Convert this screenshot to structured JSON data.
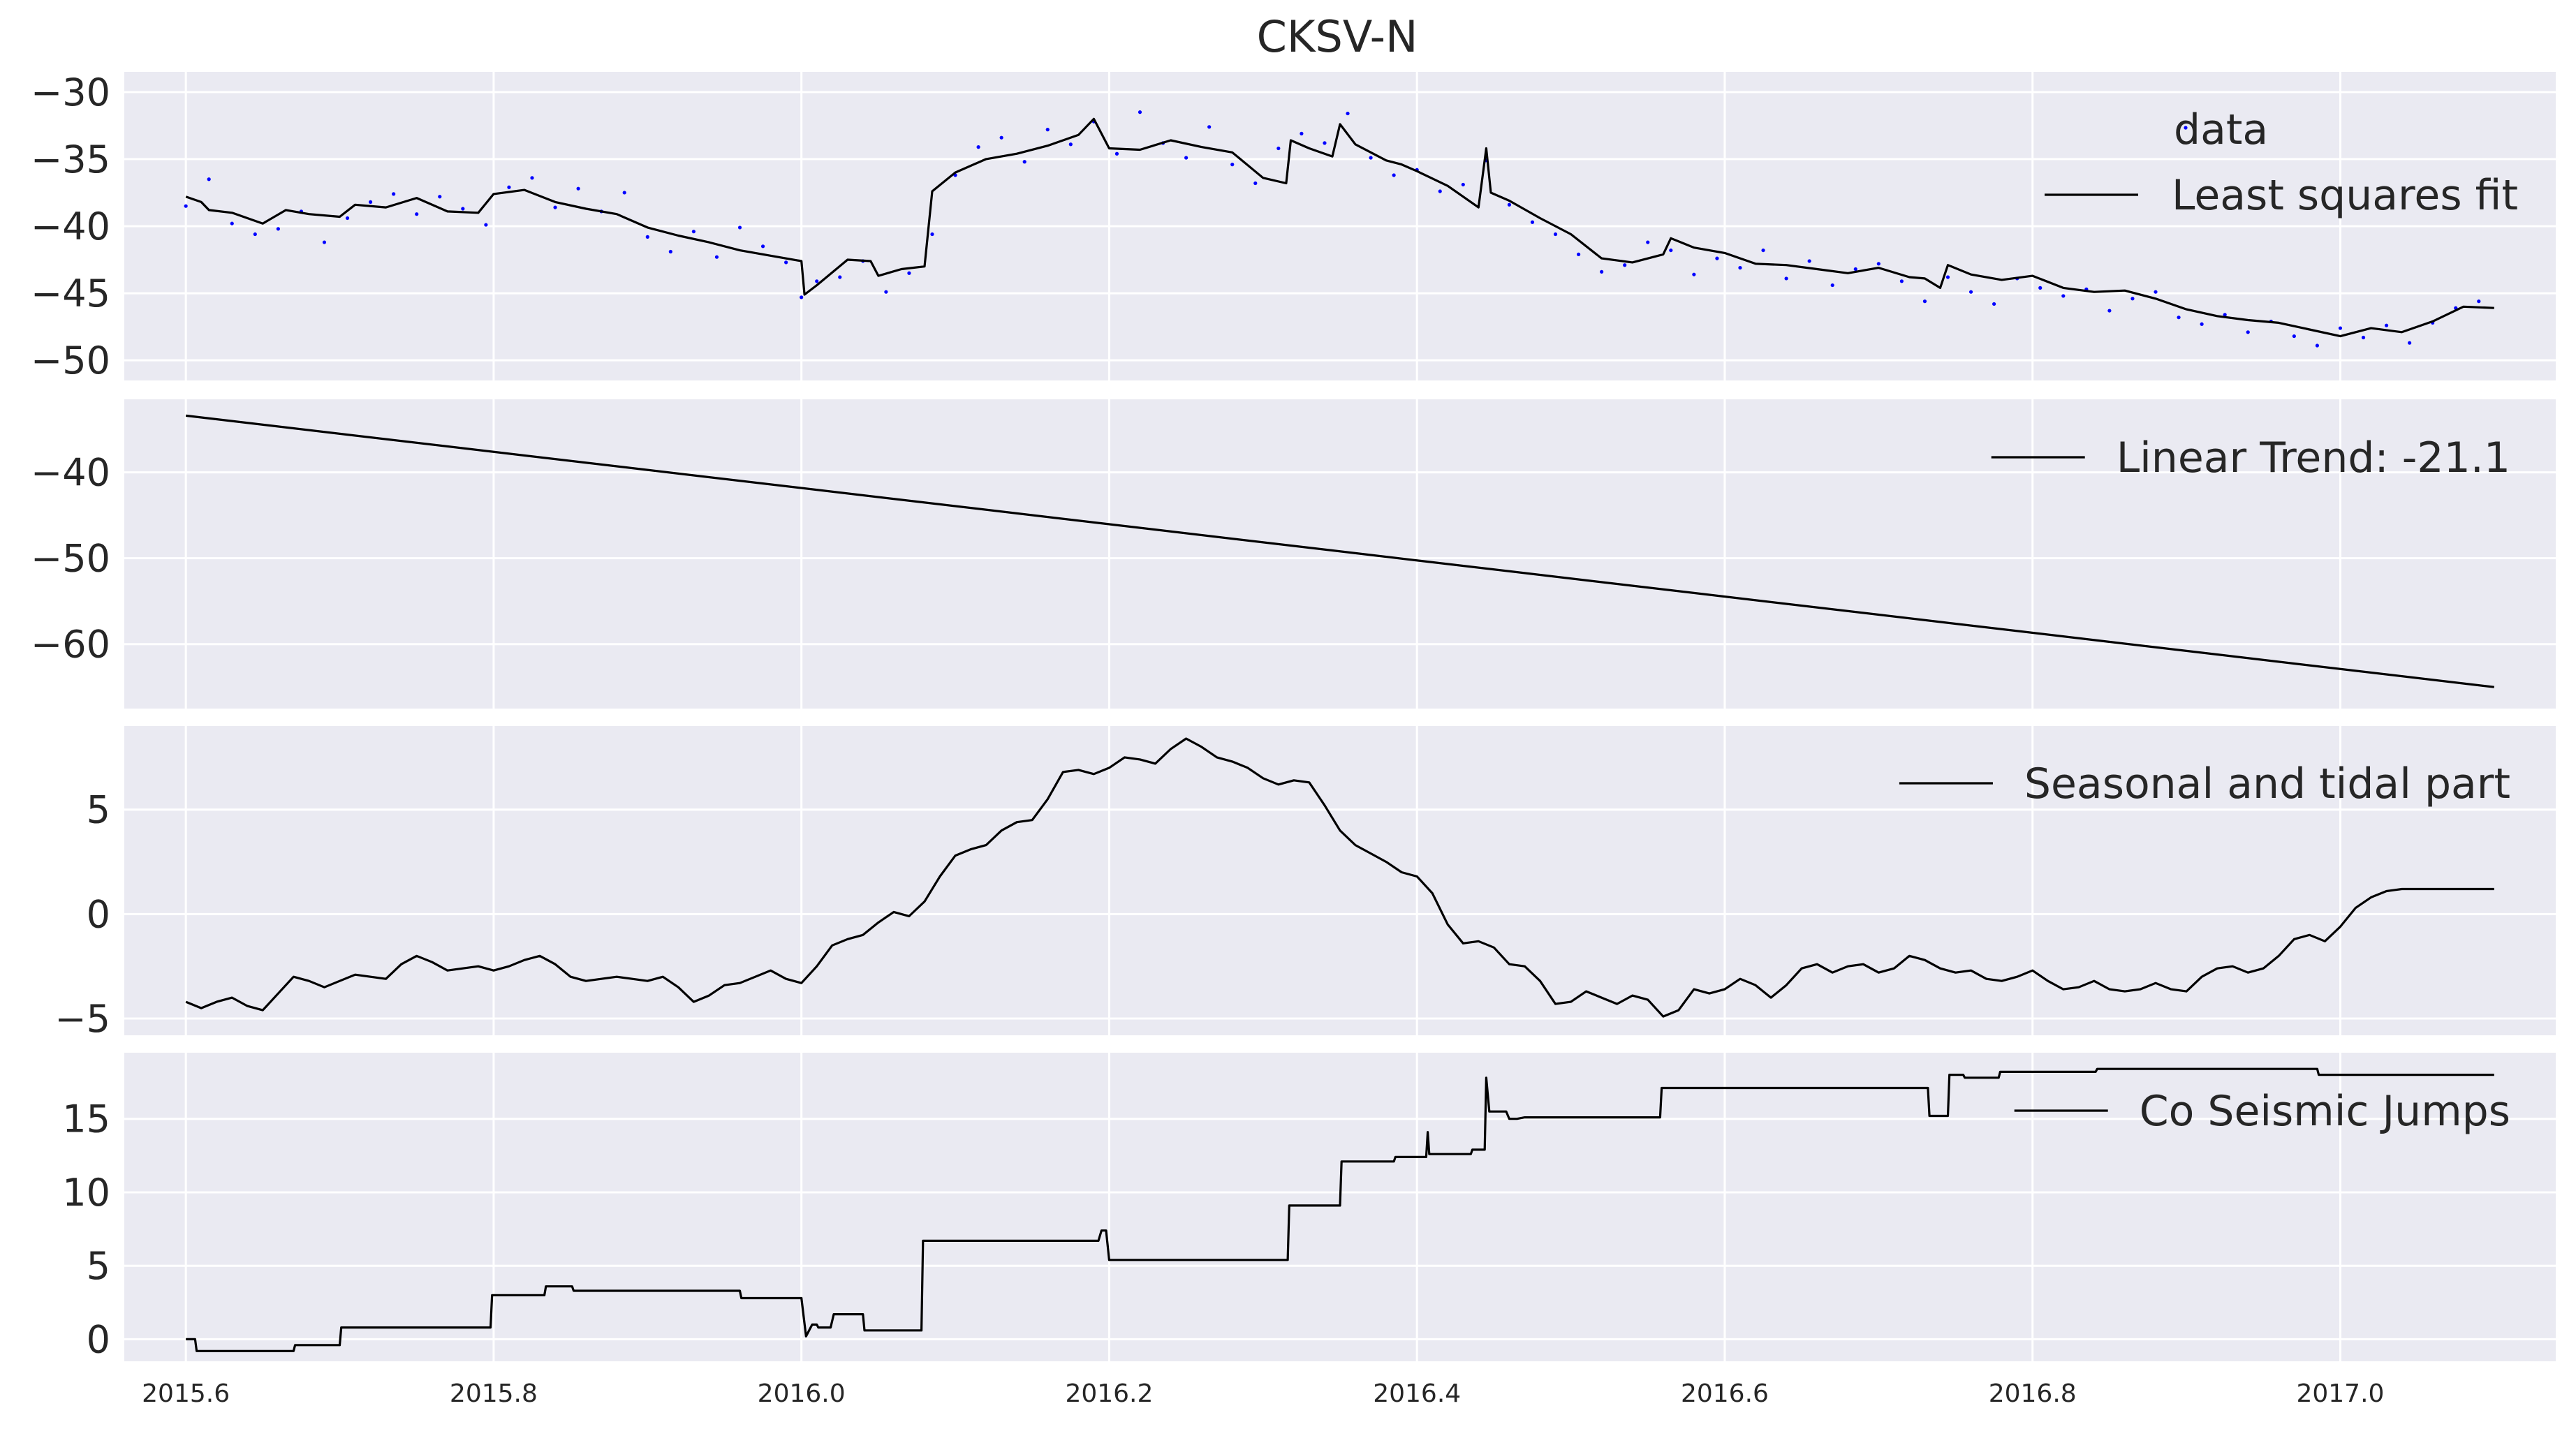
{
  "figure": {
    "title": "CKSV-N",
    "colors": {
      "axes_background": "#EAEAF2",
      "grid": "#FFFFFF",
      "line": "#000000",
      "data_points": "#0000FF"
    }
  },
  "chart_data": [
    {
      "type": "scatter+line",
      "title": "CKSV-N",
      "xlabel": "",
      "ylabel": "",
      "xlim": [
        2015.56,
        2017.14
      ],
      "ylim": [
        -51.5,
        -28.5
      ],
      "yticks": [
        -30,
        -35,
        -40,
        -45,
        -50
      ],
      "yticklabels": [
        "−30",
        "−35",
        "−40",
        "−45",
        "−50"
      ],
      "grid": true,
      "legend_position": "top-right",
      "series": [
        {
          "name": "data",
          "kind": "points",
          "color": "#0000FF",
          "x": [
            2015.6,
            2015.615,
            2015.63,
            2015.645,
            2015.66,
            2015.675,
            2015.69,
            2015.705,
            2015.72,
            2015.735,
            2015.75,
            2015.765,
            2015.78,
            2015.795,
            2015.81,
            2015.825,
            2015.84,
            2015.855,
            2015.87,
            2015.885,
            2015.9,
            2015.915,
            2015.93,
            2015.945,
            2015.96,
            2015.975,
            2015.99,
            2016.0,
            2016.01,
            2016.025,
            2016.04,
            2016.055,
            2016.07,
            2016.085,
            2016.1,
            2016.115,
            2016.13,
            2016.145,
            2016.16,
            2016.175,
            2016.19,
            2016.205,
            2016.22,
            2016.235,
            2016.25,
            2016.265,
            2016.28,
            2016.295,
            2016.31,
            2016.325,
            2016.34,
            2016.355,
            2016.37,
            2016.385,
            2016.4,
            2016.415,
            2016.43,
            2016.445,
            2016.46,
            2016.475,
            2016.49,
            2016.505,
            2016.52,
            2016.535,
            2016.55,
            2016.565,
            2016.58,
            2016.595,
            2016.61,
            2016.625,
            2016.64,
            2016.655,
            2016.67,
            2016.685,
            2016.7,
            2016.715,
            2016.73,
            2016.745,
            2016.76,
            2016.775,
            2016.79,
            2016.805,
            2016.82,
            2016.835,
            2016.85,
            2016.865,
            2016.88,
            2016.895,
            2016.91,
            2016.925,
            2016.94,
            2016.955,
            2016.97,
            2016.985,
            2017.0,
            2017.015,
            2017.03,
            2017.045,
            2017.06,
            2017.075,
            2017.09
          ],
          "y": [
            -38.5,
            -36.5,
            -39.8,
            -40.6,
            -40.2,
            -38.9,
            -41.2,
            -39.4,
            -38.2,
            -37.6,
            -39.1,
            -37.8,
            -38.7,
            -39.9,
            -37.1,
            -36.4,
            -38.6,
            -37.2,
            -38.9,
            -37.5,
            -40.8,
            -41.9,
            -40.4,
            -42.3,
            -40.1,
            -41.5,
            -42.7,
            -45.3,
            -44.1,
            -43.8,
            -42.6,
            -44.9,
            -43.5,
            -40.6,
            -36.2,
            -34.1,
            -33.4,
            -35.2,
            -32.8,
            -33.9,
            -32.2,
            -34.6,
            -31.5,
            -33.8,
            -34.9,
            -32.6,
            -35.4,
            -36.8,
            -34.2,
            -33.1,
            -33.8,
            -31.6,
            -34.9,
            -36.2,
            -35.8,
            -37.4,
            -36.9,
            -35.1,
            -38.4,
            -39.7,
            -40.6,
            -42.1,
            -43.4,
            -42.9,
            -41.2,
            -41.8,
            -43.6,
            -42.4,
            -43.1,
            -41.8,
            -43.9,
            -42.6,
            -44.4,
            -43.2,
            -42.8,
            -44.1,
            -45.6,
            -43.8,
            -44.9,
            -45.8,
            -43.9,
            -44.6,
            -45.2,
            -44.7,
            -46.3,
            -45.4,
            -44.9,
            -46.8,
            -47.3,
            -46.6,
            -47.9,
            -47.1,
            -48.2,
            -48.9,
            -47.6,
            -48.3,
            -47.4,
            -48.7,
            -47.2,
            -46.1,
            -45.6
          ]
        },
        {
          "name": "Least squares fit",
          "kind": "line",
          "color": "#000000",
          "x": [
            2015.6,
            2015.61,
            2015.615,
            2015.63,
            2015.65,
            2015.665,
            2015.68,
            2015.7,
            2015.71,
            2015.73,
            2015.75,
            2015.77,
            2015.79,
            2015.8,
            2015.82,
            2015.84,
            2015.86,
            2015.88,
            2015.9,
            2015.92,
            2015.94,
            2015.96,
            2015.98,
            2016.0,
            2016.002,
            2016.01,
            2016.03,
            2016.045,
            2016.05,
            2016.065,
            2016.08,
            2016.085,
            2016.1,
            2016.12,
            2016.14,
            2016.16,
            2016.18,
            2016.19,
            2016.2,
            2016.22,
            2016.24,
            2016.26,
            2016.28,
            2016.3,
            2016.315,
            2016.318,
            2016.33,
            2016.345,
            2016.35,
            2016.36,
            2016.38,
            2016.39,
            2016.4,
            2016.42,
            2016.44,
            2016.445,
            2016.448,
            2016.46,
            2016.48,
            2016.5,
            2016.52,
            2016.54,
            2016.56,
            2016.565,
            2016.58,
            2016.6,
            2016.62,
            2016.64,
            2016.66,
            2016.68,
            2016.7,
            2016.72,
            2016.73,
            2016.74,
            2016.745,
            2016.76,
            2016.78,
            2016.8,
            2016.82,
            2016.84,
            2016.86,
            2016.88,
            2016.9,
            2016.92,
            2016.94,
            2016.96,
            2016.98,
            2017.0,
            2017.02,
            2017.04,
            2017.06,
            2017.08,
            2017.1
          ],
          "y": [
            -37.8,
            -38.2,
            -38.8,
            -39.0,
            -39.8,
            -38.8,
            -39.1,
            -39.3,
            -38.4,
            -38.6,
            -37.9,
            -38.9,
            -39.0,
            -37.6,
            -37.3,
            -38.2,
            -38.7,
            -39.1,
            -40.1,
            -40.7,
            -41.2,
            -41.8,
            -42.2,
            -42.6,
            -45.1,
            -44.4,
            -42.5,
            -42.6,
            -43.7,
            -43.2,
            -43.0,
            -37.4,
            -36.0,
            -35.0,
            -34.6,
            -34.0,
            -33.2,
            -32.0,
            -34.2,
            -34.3,
            -33.6,
            -34.1,
            -34.5,
            -36.4,
            -36.8,
            -33.6,
            -34.2,
            -34.8,
            -32.4,
            -33.9,
            -35.1,
            -35.4,
            -35.9,
            -37.0,
            -38.6,
            -34.2,
            -37.5,
            -38.1,
            -39.4,
            -40.6,
            -42.4,
            -42.7,
            -42.1,
            -40.9,
            -41.6,
            -42.0,
            -42.8,
            -42.9,
            -43.2,
            -43.5,
            -43.1,
            -43.8,
            -43.9,
            -44.6,
            -42.9,
            -43.6,
            -44.0,
            -43.7,
            -44.6,
            -44.9,
            -44.8,
            -45.4,
            -46.2,
            -46.7,
            -47.0,
            -47.2,
            -47.7,
            -48.2,
            -47.6,
            -47.9,
            -47.1,
            -46.0,
            -46.1
          ]
        }
      ]
    },
    {
      "type": "line",
      "xlabel": "",
      "ylabel": "",
      "xlim": [
        2015.56,
        2017.14
      ],
      "ylim": [
        -67.5,
        -31.5
      ],
      "yticks": [
        -40,
        -50,
        -60
      ],
      "yticklabels": [
        "−40",
        "−50",
        "−60"
      ],
      "grid": true,
      "legend_position": "top-right",
      "series": [
        {
          "name": "Linear Trend: -21.1",
          "color": "#000000",
          "x": [
            2015.6,
            2017.1
          ],
          "y": [
            -33.4,
            -65.0
          ]
        }
      ]
    },
    {
      "type": "line",
      "xlabel": "",
      "ylabel": "",
      "xlim": [
        2015.56,
        2017.14
      ],
      "ylim": [
        -5.8,
        9.0
      ],
      "yticks": [
        5,
        0,
        -5
      ],
      "yticklabels": [
        "5",
        "0",
        "−5"
      ],
      "grid": true,
      "legend_position": "top-right",
      "series": [
        {
          "name": "Seasonal and tidal part",
          "color": "#000000",
          "x": [
            2015.6,
            2015.61,
            2015.62,
            2015.63,
            2015.64,
            2015.65,
            2015.66,
            2015.67,
            2015.68,
            2015.69,
            2015.7,
            2015.71,
            2015.72,
            2015.73,
            2015.74,
            2015.75,
            2015.76,
            2015.77,
            2015.78,
            2015.79,
            2015.8,
            2015.81,
            2015.82,
            2015.83,
            2015.84,
            2015.85,
            2015.86,
            2015.87,
            2015.88,
            2015.89,
            2015.9,
            2015.91,
            2015.92,
            2015.93,
            2015.94,
            2015.95,
            2015.96,
            2015.97,
            2015.98,
            2015.99,
            2016.0,
            2016.01,
            2016.02,
            2016.03,
            2016.04,
            2016.05,
            2016.06,
            2016.07,
            2016.08,
            2016.09,
            2016.1,
            2016.11,
            2016.12,
            2016.13,
            2016.14,
            2016.15,
            2016.16,
            2016.17,
            2016.18,
            2016.19,
            2016.2,
            2016.21,
            2016.22,
            2016.23,
            2016.24,
            2016.25,
            2016.26,
            2016.27,
            2016.28,
            2016.29,
            2016.3,
            2016.31,
            2016.32,
            2016.33,
            2016.34,
            2016.35,
            2016.36,
            2016.37,
            2016.38,
            2016.39,
            2016.4,
            2016.41,
            2016.42,
            2016.43,
            2016.44,
            2016.45,
            2016.46,
            2016.47,
            2016.48,
            2016.49,
            2016.5,
            2016.51,
            2016.52,
            2016.53,
            2016.54,
            2016.55,
            2016.56,
            2016.57,
            2016.58,
            2016.59,
            2016.6,
            2016.61,
            2016.62,
            2016.63,
            2016.64,
            2016.65,
            2016.66,
            2016.67,
            2016.68,
            2016.69,
            2016.7,
            2016.71,
            2016.72,
            2016.73,
            2016.74,
            2016.75,
            2016.76,
            2016.77,
            2016.78,
            2016.79,
            2016.8,
            2016.81,
            2016.82,
            2016.83,
            2016.84,
            2016.85,
            2016.86,
            2016.87,
            2016.88,
            2016.89,
            2016.9,
            2016.91,
            2016.92,
            2016.93,
            2016.94,
            2016.95,
            2016.96,
            2016.97,
            2016.98,
            2016.99,
            2017.0,
            2017.01,
            2017.02,
            2017.03,
            2017.04,
            2017.05,
            2017.06,
            2017.07,
            2017.08,
            2017.09,
            2017.1
          ],
          "y": [
            -4.2,
            -4.5,
            -4.2,
            -4.0,
            -4.4,
            -4.6,
            -3.8,
            -3.0,
            -3.2,
            -3.5,
            -3.2,
            -2.9,
            -3.0,
            -3.1,
            -2.4,
            -2.0,
            -2.3,
            -2.7,
            -2.6,
            -2.5,
            -2.7,
            -2.5,
            -2.2,
            -2.0,
            -2.4,
            -3.0,
            -3.2,
            -3.1,
            -3.0,
            -3.1,
            -3.2,
            -3.0,
            -3.5,
            -4.2,
            -3.9,
            -3.4,
            -3.3,
            -3.0,
            -2.7,
            -3.1,
            -3.3,
            -2.5,
            -1.5,
            -1.2,
            -1.0,
            -0.4,
            0.1,
            -0.1,
            0.6,
            1.8,
            2.8,
            3.1,
            3.3,
            4.0,
            4.4,
            4.5,
            5.5,
            6.8,
            6.9,
            6.7,
            7.0,
            7.5,
            7.4,
            7.2,
            7.9,
            8.4,
            8.0,
            7.5,
            7.3,
            7.0,
            6.5,
            6.2,
            6.4,
            6.3,
            5.2,
            4.0,
            3.3,
            2.9,
            2.5,
            2.0,
            1.8,
            1.0,
            -0.5,
            -1.4,
            -1.3,
            -1.6,
            -2.4,
            -2.5,
            -3.2,
            -4.3,
            -4.2,
            -3.7,
            -4.0,
            -4.3,
            -3.9,
            -4.1,
            -4.9,
            -4.6,
            -3.6,
            -3.8,
            -3.6,
            -3.1,
            -3.4,
            -4.0,
            -3.4,
            -2.6,
            -2.4,
            -2.8,
            -2.5,
            -2.4,
            -2.8,
            -2.6,
            -2.0,
            -2.2,
            -2.6,
            -2.8,
            -2.7,
            -3.1,
            -3.2,
            -3.0,
            -2.7,
            -3.2,
            -3.6,
            -3.5,
            -3.2,
            -3.6,
            -3.7,
            -3.6,
            -3.3,
            -3.6,
            -3.7,
            -3.0,
            -2.6,
            -2.5,
            -2.8,
            -2.6,
            -2.0,
            -1.2,
            -1.0,
            -1.3,
            -0.6,
            0.3,
            0.8,
            1.1,
            1.2,
            1.2,
            1.2,
            1.2,
            1.2,
            1.2,
            1.2
          ]
        }
      ]
    },
    {
      "type": "line",
      "xlabel": "",
      "ylabel": "",
      "xlim": [
        2015.56,
        2017.14
      ],
      "ylim": [
        -1.5,
        19.5
      ],
      "yticks": [
        15,
        10,
        5,
        0
      ],
      "yticklabels": [
        "15",
        "10",
        "5",
        "0"
      ],
      "xticks": [
        2015.6,
        2015.8,
        2016.0,
        2016.2,
        2016.4,
        2016.6,
        2016.8,
        2017.0
      ],
      "xticklabels": [
        "2015.6",
        "2015.8",
        "2016.0",
        "2016.2",
        "2016.4",
        "2016.6",
        "2016.8",
        "2017.0"
      ],
      "grid": true,
      "legend_position": "top-right",
      "series": [
        {
          "name": "Co Seismic Jumps",
          "color": "#000000",
          "x": [
            2015.6,
            2015.606,
            2015.607,
            2015.67,
            2015.671,
            2015.7,
            2015.701,
            2015.798,
            2015.799,
            2015.833,
            2015.834,
            2015.851,
            2015.852,
            2015.96,
            2015.961,
            2016.0,
            2016.003,
            2016.007,
            2016.01,
            2016.011,
            2016.019,
            2016.021,
            2016.04,
            2016.041,
            2016.078,
            2016.079,
            2016.193,
            2016.195,
            2016.198,
            2016.2,
            2016.316,
            2016.317,
            2016.35,
            2016.351,
            2016.385,
            2016.386,
            2016.406,
            2016.407,
            2016.408,
            2016.41,
            2016.435,
            2016.436,
            2016.444,
            2016.445,
            2016.447,
            2016.45,
            2016.458,
            2016.46,
            2016.465,
            2016.47,
            2016.558,
            2016.559,
            2016.732,
            2016.733,
            2016.745,
            2016.746,
            2016.755,
            2016.756,
            2016.778,
            2016.779,
            2016.841,
            2016.842,
            2016.894,
            2016.895,
            2016.985,
            2016.986,
            2017.1
          ],
          "y": [
            0.0,
            0.0,
            -0.8,
            -0.8,
            -0.4,
            -0.4,
            0.8,
            0.8,
            3.0,
            3.0,
            3.6,
            3.6,
            3.3,
            3.3,
            2.8,
            2.8,
            0.2,
            1.0,
            1.0,
            0.8,
            0.8,
            1.7,
            1.7,
            0.6,
            0.6,
            6.7,
            6.7,
            7.4,
            7.4,
            5.4,
            5.4,
            9.1,
            9.1,
            12.1,
            12.1,
            12.4,
            12.4,
            14.1,
            12.6,
            12.6,
            12.6,
            12.9,
            12.9,
            17.8,
            15.5,
            15.5,
            15.5,
            15.0,
            15.0,
            15.1,
            15.1,
            17.1,
            17.1,
            15.2,
            15.2,
            18.0,
            18.0,
            17.8,
            17.8,
            18.2,
            18.2,
            18.4,
            18.4,
            18.4,
            18.4,
            18.0,
            18.0
          ]
        }
      ]
    }
  ]
}
